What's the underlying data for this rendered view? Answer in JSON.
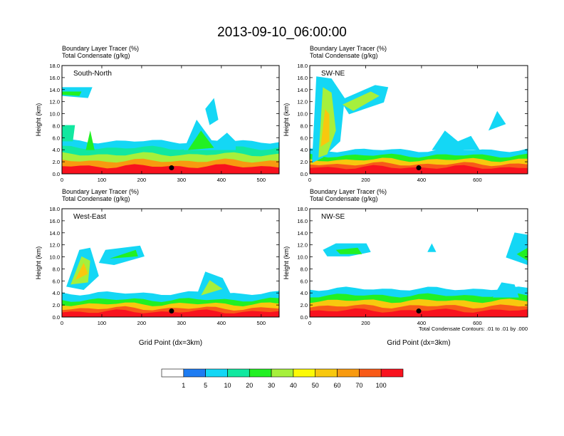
{
  "title": "2013-09-10_06:00:00",
  "chart_data": [
    {
      "type": "heatmap",
      "panel": "South-North",
      "title_lines": [
        "Boundary Layer Tracer    (%)",
        "Total Condensate    (g/kg)"
      ],
      "ylabel": "Height (km)",
      "xlabel": "",
      "xlim": [
        0,
        545
      ],
      "ylim": [
        0,
        18
      ],
      "xticks": [
        0,
        100,
        200,
        300,
        400,
        500
      ],
      "yticks": [
        "0.0",
        "2.0",
        "4.0",
        "6.0",
        "8.0",
        "10.0",
        "12.0",
        "14.0",
        "16.0",
        "18.0"
      ],
      "marker": [
        275,
        1.0
      ]
    },
    {
      "type": "heatmap",
      "panel": "SW-NE",
      "title_lines": [
        "Boundary Layer Tracer    (%)",
        "Total Condensate    (g/kg)"
      ],
      "ylabel": "Height (km)",
      "xlabel": "",
      "xlim": [
        0,
        780
      ],
      "ylim": [
        0,
        18
      ],
      "xticks": [
        0,
        200,
        400,
        600
      ],
      "yticks": [
        "0.0",
        "2.0",
        "4.0",
        "6.0",
        "8.0",
        "10.0",
        "12.0",
        "14.0",
        "16.0",
        "18.0"
      ],
      "marker": [
        390,
        1.0
      ]
    },
    {
      "type": "heatmap",
      "panel": "West-East",
      "title_lines": [
        "Boundary Layer Tracer    (%)",
        "Total Condensate    (g/kg)"
      ],
      "ylabel": "Height (km)",
      "xlabel": "Grid Point (dx=3km)",
      "xlim": [
        0,
        545
      ],
      "ylim": [
        0,
        18
      ],
      "xticks": [
        0,
        100,
        200,
        300,
        400,
        500
      ],
      "yticks": [
        "0.0",
        "2.0",
        "4.0",
        "6.0",
        "8.0",
        "10.0",
        "12.0",
        "14.0",
        "16.0",
        "18.0"
      ],
      "marker": [
        275,
        1.0
      ]
    },
    {
      "type": "heatmap",
      "panel": "NW-SE",
      "title_lines": [
        "Boundary Layer Tracer    (%)",
        "Total Condensate    (g/kg)"
      ],
      "ylabel": "Height (km)",
      "xlabel": "Grid Point (dx=3km)",
      "xlim": [
        0,
        780
      ],
      "ylim": [
        0,
        18
      ],
      "xticks": [
        0,
        200,
        400,
        600
      ],
      "yticks": [
        "0.0",
        "2.0",
        "4.0",
        "6.0",
        "8.0",
        "10.0",
        "12.0",
        "14.0",
        "16.0",
        "18.0"
      ],
      "marker": [
        390,
        1.0
      ],
      "footnote": "Total Condensate Contours: .01 to .01 by .000"
    }
  ],
  "colorbar": {
    "colors": [
      "#ffffff",
      "#1e7cf2",
      "#14d7f5",
      "#11e8a0",
      "#22f023",
      "#a6f03c",
      "#fcfa06",
      "#f8c80e",
      "#f89a10",
      "#f85a18",
      "#f8121e"
    ],
    "labels": [
      "1",
      "5",
      "10",
      "20",
      "30",
      "40",
      "50",
      "60",
      "70",
      "100"
    ]
  }
}
